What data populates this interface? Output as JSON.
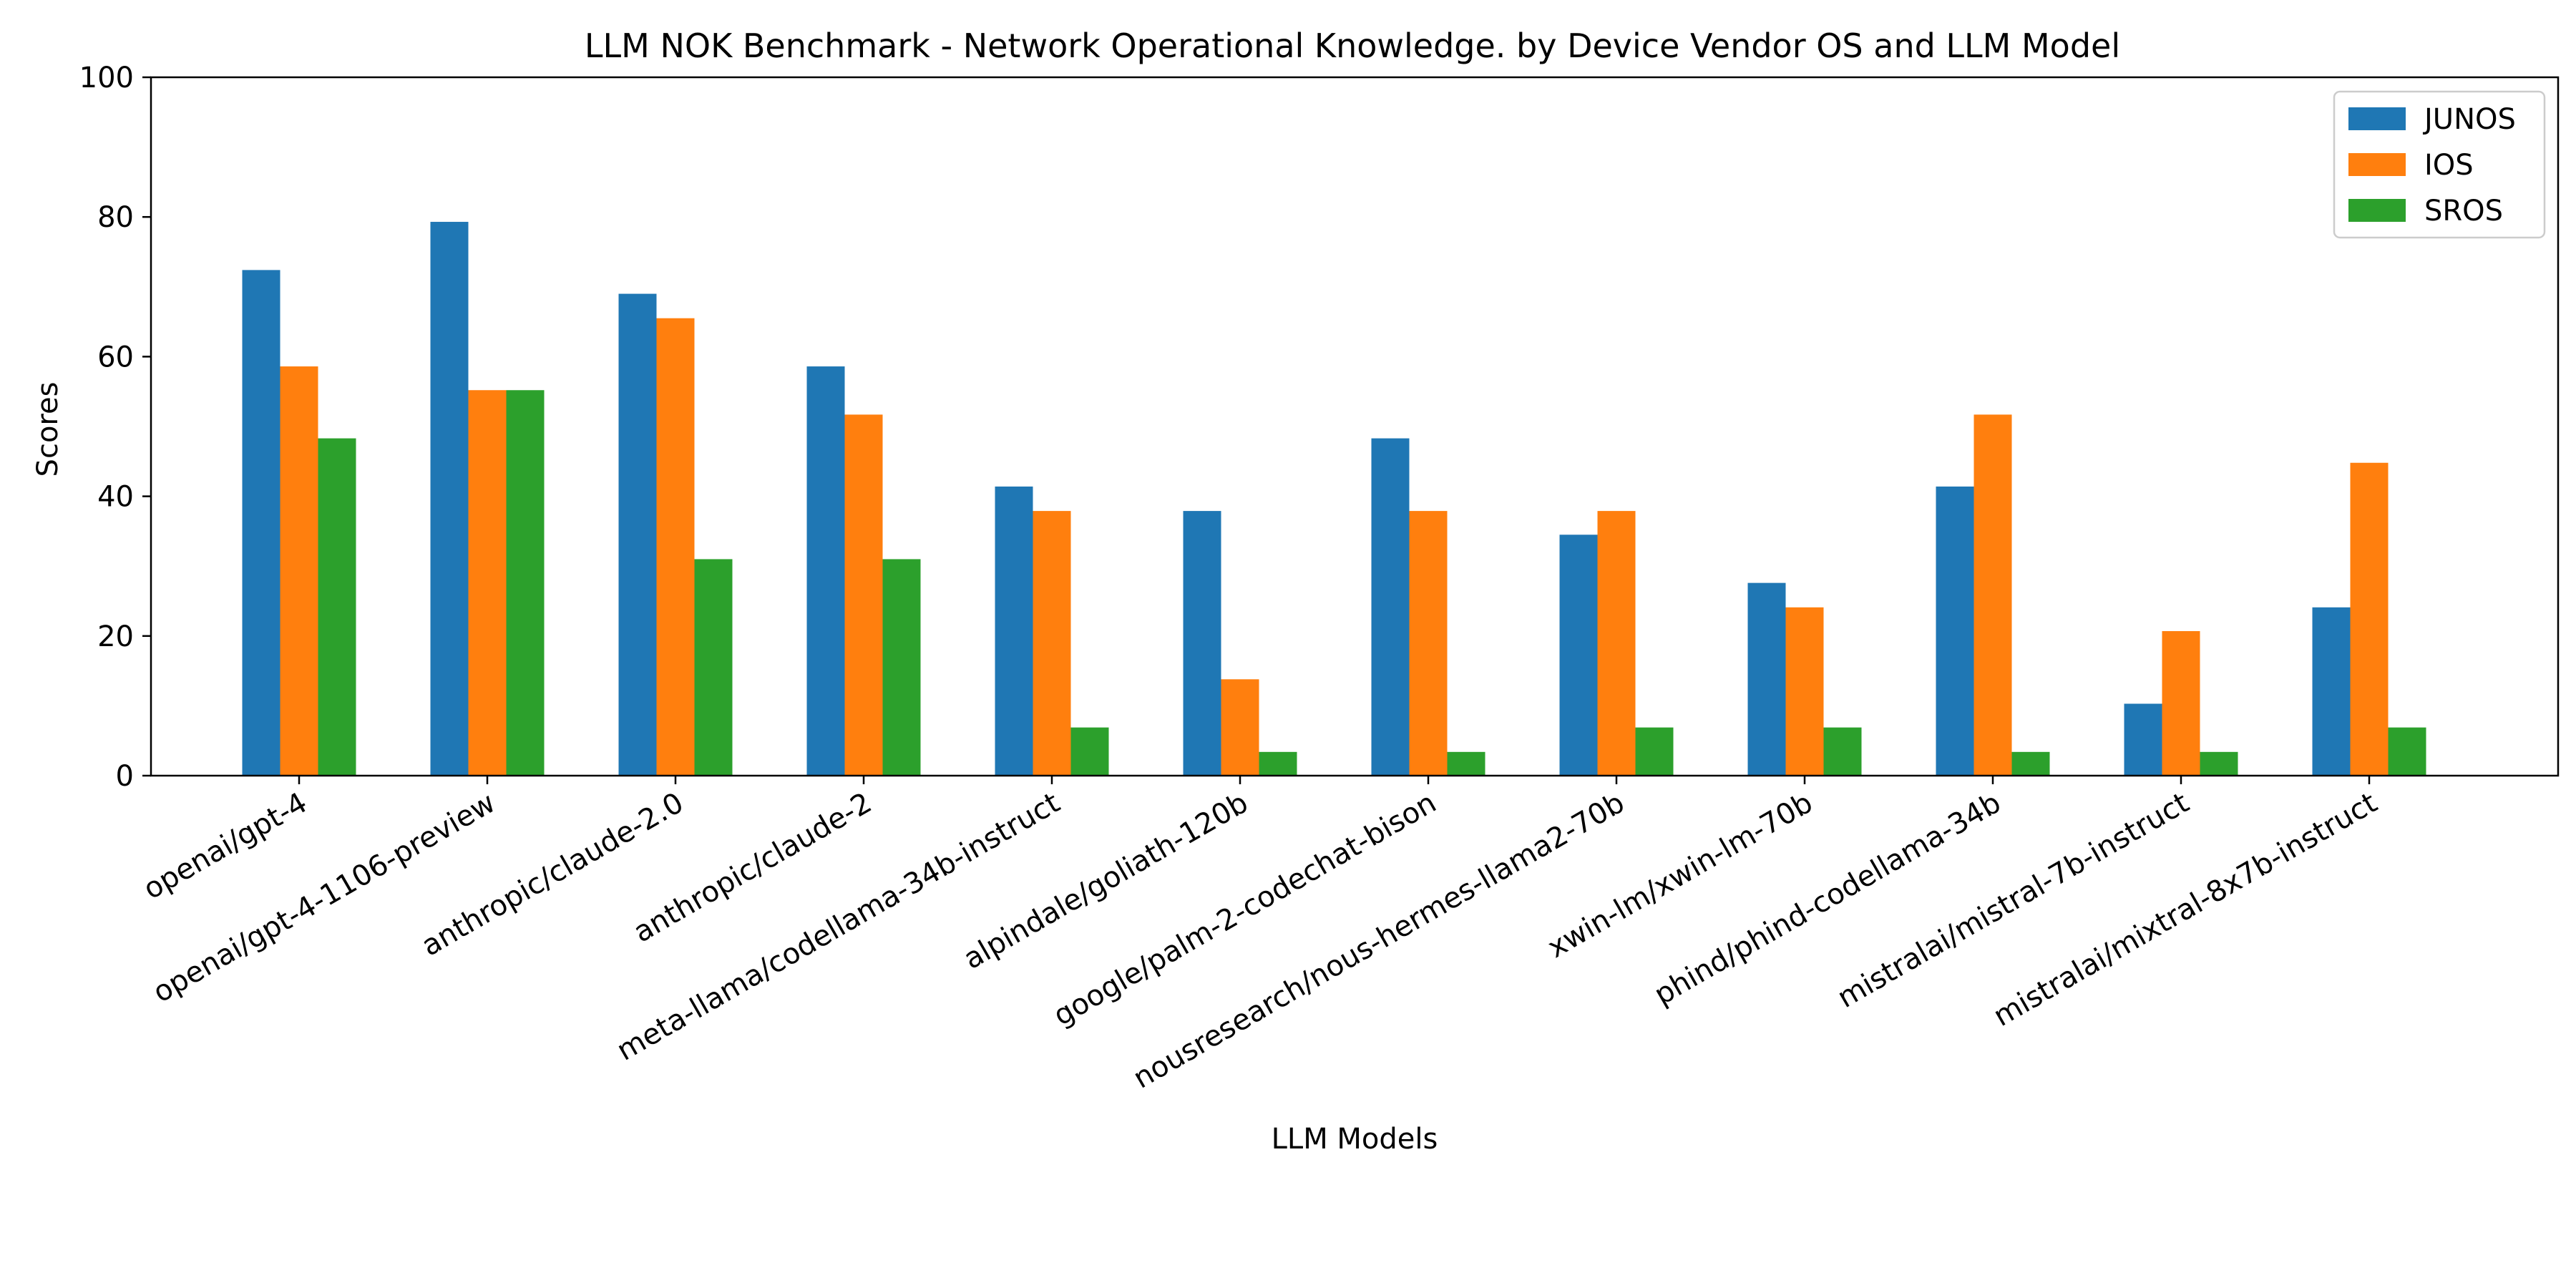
{
  "chart_data": {
    "type": "bar",
    "title": "LLM NOK Benchmark - Network Operational Knowledge. by Device Vendor OS and LLM Model",
    "xlabel": "LLM Models",
    "ylabel": "Scores",
    "ylim": [
      0,
      100
    ],
    "yticks": [
      "0",
      "20",
      "40",
      "60",
      "80",
      "100"
    ],
    "grid": false,
    "legend_position": "top-right",
    "categories": [
      "openai/gpt-4",
      "openai/gpt-4-1106-preview",
      "anthropic/claude-2.0",
      "anthropic/claude-2",
      "meta-llama/codellama-34b-instruct",
      "alpindale/goliath-120b",
      "google/palm-2-codechat-bison",
      "nousresearch/nous-hermes-llama2-70b",
      "xwin-lm/xwin-lm-70b",
      "phind/phind-codellama-34b",
      "mistralai/mistral-7b-instruct",
      "mistralai/mixtral-8x7b-instruct"
    ],
    "series": [
      {
        "name": "JUNOS",
        "color": "#1f77b4",
        "values": [
          72.4,
          79.3,
          69.0,
          58.6,
          41.4,
          37.9,
          48.3,
          34.5,
          27.6,
          41.4,
          10.3,
          24.1
        ]
      },
      {
        "name": "IOS",
        "color": "#ff7f0e",
        "values": [
          58.6,
          55.2,
          65.5,
          51.7,
          37.9,
          13.8,
          37.9,
          37.9,
          24.1,
          51.7,
          20.7,
          44.8
        ]
      },
      {
        "name": "SROS",
        "color": "#2ca02c",
        "values": [
          48.3,
          55.2,
          31.0,
          31.0,
          6.9,
          3.4,
          3.4,
          6.9,
          6.9,
          3.4,
          3.4,
          6.9
        ]
      }
    ]
  }
}
